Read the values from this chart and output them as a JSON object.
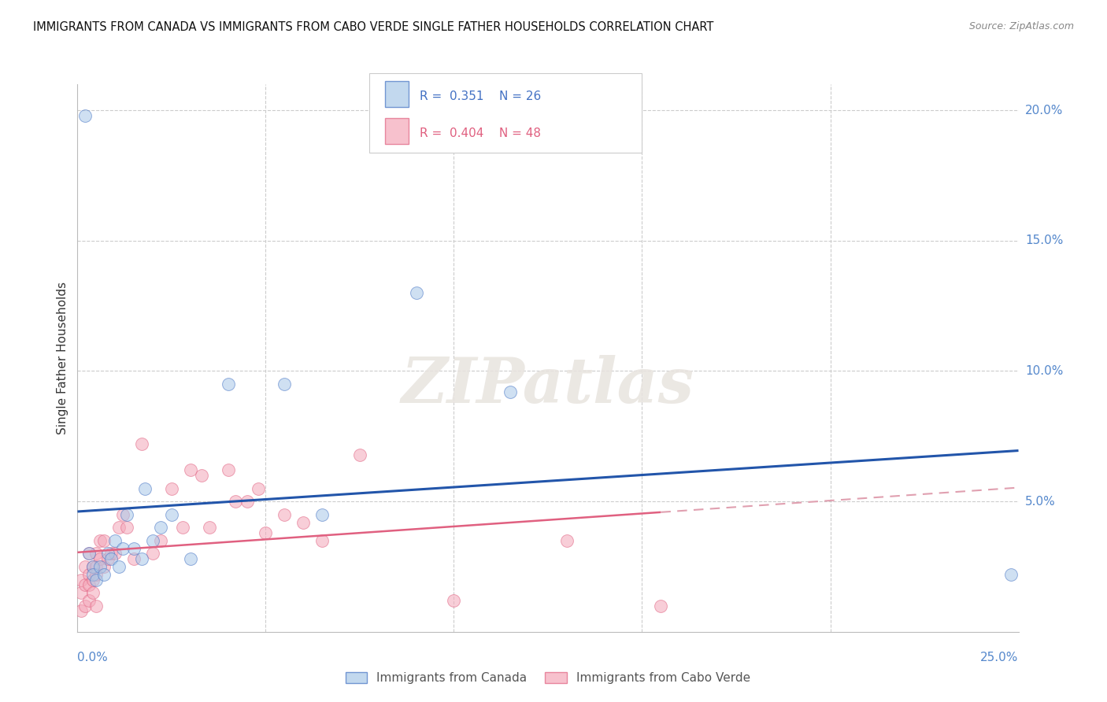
{
  "title": "IMMIGRANTS FROM CANADA VS IMMIGRANTS FROM CABO VERDE SINGLE FATHER HOUSEHOLDS CORRELATION CHART",
  "source": "Source: ZipAtlas.com",
  "ylabel": "Single Father Households",
  "ytick_vals": [
    0.05,
    0.1,
    0.15,
    0.2
  ],
  "ytick_labels": [
    "5.0%",
    "10.0%",
    "15.0%",
    "20.0%"
  ],
  "xlim": [
    0.0,
    0.25
  ],
  "ylim": [
    0.0,
    0.21
  ],
  "legend1_label": "Immigrants from Canada",
  "legend1_R": "0.351",
  "legend1_N": "26",
  "legend1_color": "#a8c8e8",
  "legend1_edge": "#4472c4",
  "legend2_label": "Immigrants from Cabo Verde",
  "legend2_R": "0.404",
  "legend2_N": "48",
  "legend2_color": "#f4a7b9",
  "legend2_edge": "#e06080",
  "blue_line_color": "#2255aa",
  "pink_solid_color": "#e06080",
  "pink_dash_color": "#e0a0b0",
  "watermark": "ZIPatlas",
  "canada_x": [
    0.002,
    0.003,
    0.004,
    0.004,
    0.005,
    0.006,
    0.007,
    0.008,
    0.009,
    0.01,
    0.011,
    0.012,
    0.013,
    0.015,
    0.017,
    0.018,
    0.02,
    0.022,
    0.025,
    0.03,
    0.04,
    0.055,
    0.065,
    0.09,
    0.115,
    0.248
  ],
  "canada_y": [
    0.198,
    0.03,
    0.025,
    0.022,
    0.02,
    0.025,
    0.022,
    0.03,
    0.028,
    0.035,
    0.025,
    0.032,
    0.045,
    0.032,
    0.028,
    0.055,
    0.035,
    0.04,
    0.045,
    0.028,
    0.095,
    0.095,
    0.045,
    0.13,
    0.092,
    0.022
  ],
  "caboverde_x": [
    0.001,
    0.001,
    0.001,
    0.002,
    0.002,
    0.002,
    0.003,
    0.003,
    0.003,
    0.003,
    0.004,
    0.004,
    0.004,
    0.005,
    0.005,
    0.005,
    0.005,
    0.006,
    0.006,
    0.007,
    0.007,
    0.008,
    0.009,
    0.01,
    0.011,
    0.012,
    0.013,
    0.015,
    0.017,
    0.02,
    0.022,
    0.025,
    0.028,
    0.03,
    0.033,
    0.035,
    0.04,
    0.042,
    0.045,
    0.048,
    0.05,
    0.055,
    0.06,
    0.065,
    0.075,
    0.1,
    0.13,
    0.155
  ],
  "caboverde_y": [
    0.02,
    0.015,
    0.008,
    0.025,
    0.018,
    0.01,
    0.03,
    0.022,
    0.018,
    0.012,
    0.025,
    0.02,
    0.015,
    0.03,
    0.025,
    0.022,
    0.01,
    0.035,
    0.028,
    0.035,
    0.025,
    0.028,
    0.03,
    0.03,
    0.04,
    0.045,
    0.04,
    0.028,
    0.072,
    0.03,
    0.035,
    0.055,
    0.04,
    0.062,
    0.06,
    0.04,
    0.062,
    0.05,
    0.05,
    0.055,
    0.038,
    0.045,
    0.042,
    0.035,
    0.068,
    0.012,
    0.035,
    0.01
  ],
  "background_color": "#ffffff",
  "grid_color": "#cccccc",
  "scatter_alpha": 0.55,
  "scatter_size": 130
}
